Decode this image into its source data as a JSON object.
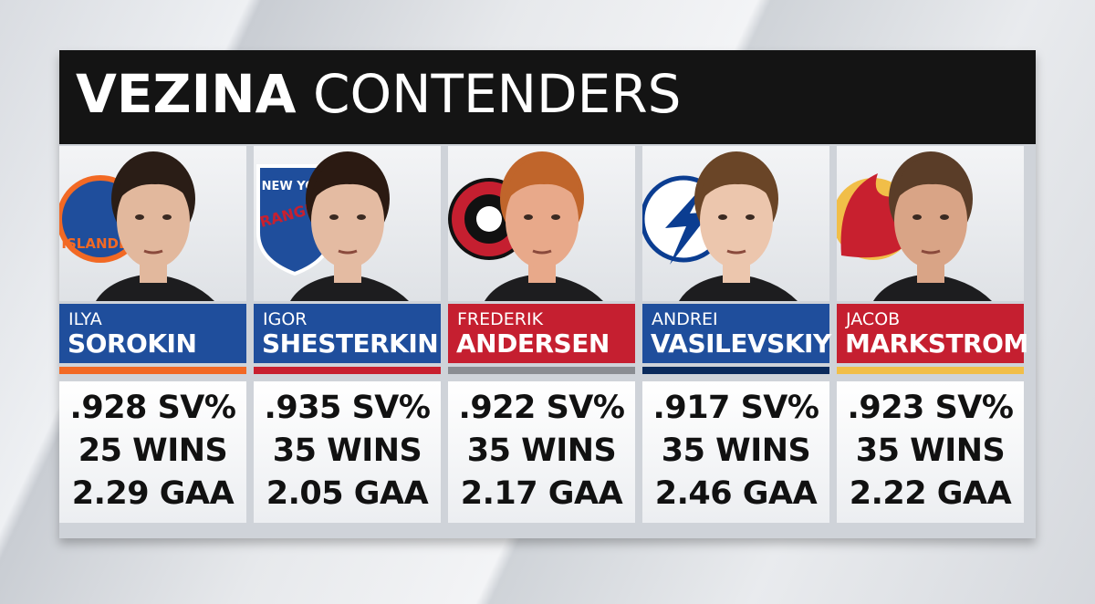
{
  "header": {
    "title_bold": "VEZINA",
    "title_rest": "CONTENDERS"
  },
  "cards": [
    {
      "first_name": "ILYA",
      "last_name": "SOROKIN",
      "logo_text": [
        "ISLANDERS"
      ],
      "stats": [
        ".928 SV%",
        "25 WINS",
        "2.29 GAA"
      ]
    },
    {
      "first_name": "IGOR",
      "last_name": "SHESTERKIN",
      "logo_text": [
        "NEW YORK",
        "RANGERS"
      ],
      "stats": [
        ".935 SV%",
        "35 WINS",
        "2.05 GAA"
      ]
    },
    {
      "first_name": "FREDERIK",
      "last_name": "ANDERSEN",
      "stats": [
        ".922 SV%",
        "35 WINS",
        "2.17 GAA"
      ]
    },
    {
      "first_name": "ANDREI",
      "last_name": "VASILEVSKIY",
      "stats": [
        ".917 SV%",
        "35 WINS",
        "2.46 GAA"
      ]
    },
    {
      "first_name": "JACOB",
      "last_name": "MARKSTROM",
      "stats": [
        ".923 SV%",
        "35 WINS",
        "2.22 GAA"
      ]
    }
  ]
}
